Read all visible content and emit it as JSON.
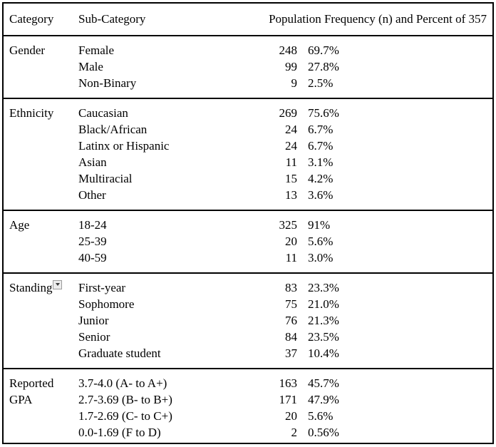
{
  "table": {
    "headers": {
      "category": "Category",
      "sub_category": "Sub-Category",
      "frequency": "Population Frequency (n) and Percent of 357"
    },
    "icons": {
      "standing_marker": "dropdown-arrow-icon"
    },
    "sections": [
      {
        "category": "Gender",
        "has_dropdown": false,
        "rows": [
          {
            "label": "Female",
            "n": "248",
            "pct": "69.7%"
          },
          {
            "label": "Male",
            "n": "99",
            "pct": "27.8%"
          },
          {
            "label": "Non-Binary",
            "n": "9",
            "pct": "2.5%"
          }
        ]
      },
      {
        "category": "Ethnicity",
        "has_dropdown": false,
        "rows": [
          {
            "label": "Caucasian",
            "n": "269",
            "pct": "75.6%"
          },
          {
            "label": "Black/African",
            "n": "24",
            "pct": "6.7%"
          },
          {
            "label": "Latinx or Hispanic",
            "n": "24",
            "pct": "6.7%"
          },
          {
            "label": "Asian",
            "n": "11",
            "pct": "3.1%"
          },
          {
            "label": "Multiracial",
            "n": "15",
            "pct": "4.2%"
          },
          {
            "label": "Other",
            "n": "13",
            "pct": "3.6%"
          }
        ]
      },
      {
        "category": "Age",
        "has_dropdown": false,
        "rows": [
          {
            "label": "18-24",
            "n": "325",
            "pct": "91%"
          },
          {
            "label": "25-39",
            "n": "20",
            "pct": "5.6%"
          },
          {
            "label": "40-59",
            "n": "11",
            "pct": "3.0%"
          }
        ]
      },
      {
        "category": "Standing",
        "has_dropdown": true,
        "rows": [
          {
            "label": "First-year",
            "n": "83",
            "pct": "23.3%"
          },
          {
            "label": "Sophomore",
            "n": "75",
            "pct": "21.0%"
          },
          {
            "label": "Junior",
            "n": "76",
            "pct": "21.3%"
          },
          {
            "label": "Senior",
            "n": "84",
            "pct": "23.5%"
          },
          {
            "label": "Graduate student",
            "n": "37",
            "pct": "10.4%"
          }
        ]
      },
      {
        "category": "Reported GPA",
        "has_dropdown": false,
        "rows": [
          {
            "label": "3.7-4.0 (A- to A+)",
            "n": "163",
            "pct": "45.7%"
          },
          {
            "label": "2.7-3.69 (B- to B+)",
            "n": "171",
            "pct": "47.9%"
          },
          {
            "label": "1.7-2.69 (C- to C+)",
            "n": "20",
            "pct": "5.6%"
          },
          {
            "label": "0.0-1.69 (F to D)",
            "n": "2",
            "pct": "0.56%"
          }
        ]
      }
    ]
  }
}
